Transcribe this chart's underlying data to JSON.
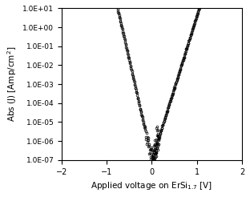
{
  "title": "",
  "xlabel": "Applied voltage on ErSi$_{1.7}$ [V]",
  "ylabel": "Abs (J) [Amp/cm$^2$]",
  "xlim": [
    -2,
    2
  ],
  "ylim_log": [
    1e-07,
    10.0
  ],
  "yticks": [
    1e-07,
    1e-06,
    1e-05,
    0.0001,
    0.001,
    0.01,
    0.1,
    1.0,
    10.0
  ],
  "ytick_labels": [
    "1.0E-07",
    "1.0E-06",
    "1.0E-05",
    "1.0E-04",
    "1.0E-03",
    "1.0E-02",
    "1.0E-01",
    "1.0E+00",
    "1.0E+01"
  ],
  "xticks": [
    -2,
    -1,
    0,
    1,
    2
  ],
  "marker": "o",
  "markersize": 2.0,
  "markerfacecolor": "none",
  "markeredgecolor": "black",
  "markeredgewidth": 0.5,
  "background_color": "#ffffff",
  "diode_params": {
    "I0": 1e-07,
    "n_forward": 1.6,
    "n_reverse": 2.2,
    "noise_seed": 42
  }
}
